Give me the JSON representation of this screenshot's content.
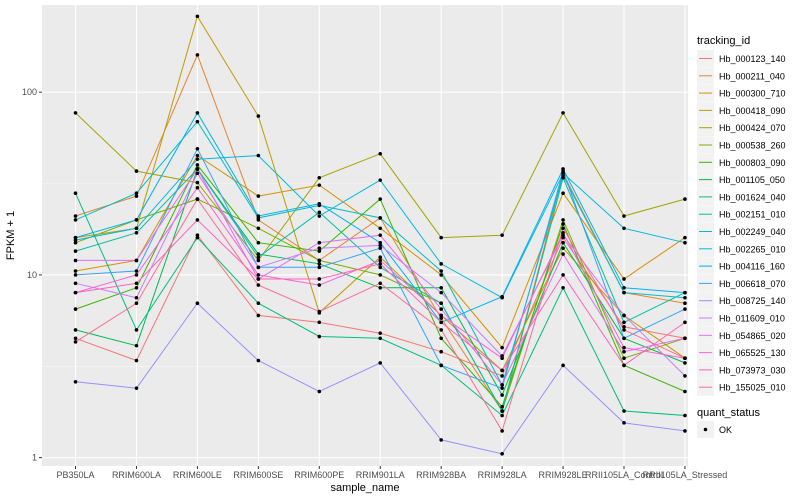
{
  "chart_data": {
    "type": "line",
    "xlabel": "sample_name",
    "ylabel": "FPKM + 1",
    "y_scale": "log10",
    "ylim": [
      0.9,
      300
    ],
    "yticks": [
      1,
      10,
      100
    ],
    "ytick_labels": [
      "1",
      "10",
      "100"
    ],
    "grid": true,
    "legend_position": "right",
    "legend_title": "tracking_id",
    "shape_legend_title": "quant_status",
    "shape_legend_items": [
      "OK"
    ],
    "categories": [
      "PB350LA",
      "RRIM600LA",
      "RRIM600LE",
      "RRIM600SE",
      "RRIM600PE",
      "RRIM901LA",
      "RRIM928BA",
      "RRIM928LA",
      "RRIM928LE",
      "RRII105LA_Control",
      "RRII105LA_Stressed"
    ],
    "series": [
      {
        "name": "Hb_000123_140",
        "color": "#F8766D",
        "values": [
          4.5,
          3.4,
          16.5,
          6.0,
          5.5,
          4.8,
          3.8,
          2.8,
          16.0,
          5.2,
          4.5
        ]
      },
      {
        "name": "Hb_000211_040",
        "color": "#EA8331",
        "values": [
          21.0,
          27.0,
          160.0,
          20.0,
          12.0,
          20.5,
          5.8,
          1.8,
          36.0,
          8.0,
          7.0
        ]
      },
      {
        "name": "Hb_000300_710",
        "color": "#D89000",
        "values": [
          10.5,
          12.0,
          45.0,
          27.0,
          31.0,
          18.0,
          10.0,
          4.0,
          28.0,
          9.5,
          16.0
        ]
      },
      {
        "name": "Hb_000418_090",
        "color": "#C09B00",
        "values": [
          16.0,
          18.0,
          260.0,
          74.0,
          6.2,
          12.5,
          6.0,
          3.0,
          14.0,
          6.0,
          3.5
        ]
      },
      {
        "name": "Hb_000424_070",
        "color": "#A3A500",
        "values": [
          77.0,
          37.0,
          32.0,
          12.0,
          34.0,
          46.0,
          16.0,
          16.5,
          77.0,
          21.0,
          26.0
        ]
      },
      {
        "name": "Hb_000538_260",
        "color": "#7CAE00",
        "values": [
          15.0,
          20.0,
          26.0,
          18.0,
          12.0,
          10.0,
          7.0,
          1.8,
          20.0,
          3.5,
          4.5
        ]
      },
      {
        "name": "Hb_000803_090",
        "color": "#39B600",
        "values": [
          6.5,
          8.5,
          40.0,
          15.0,
          13.5,
          26.0,
          4.5,
          1.9,
          19.0,
          3.2,
          2.3
        ]
      },
      {
        "name": "Hb_001105_050",
        "color": "#00BB4E",
        "values": [
          5.0,
          4.1,
          38.0,
          13.0,
          11.5,
          8.5,
          8.5,
          2.2,
          15.0,
          4.5,
          3.3
        ]
      },
      {
        "name": "Hb_001624_040",
        "color": "#00BF7D",
        "values": [
          28.0,
          5.0,
          16.0,
          7.0,
          4.6,
          4.5,
          3.2,
          1.7,
          8.5,
          1.8,
          1.7
        ]
      },
      {
        "name": "Hb_002151_010",
        "color": "#00C1A3",
        "values": [
          13.5,
          17.0,
          38.0,
          12.5,
          22.0,
          11.0,
          7.0,
          1.8,
          34.0,
          5.5,
          8.0
        ]
      },
      {
        "name": "Hb_002249_040",
        "color": "#00BFC4",
        "values": [
          20.0,
          28.0,
          69.0,
          20.5,
          24.0,
          20.5,
          10.5,
          2.5,
          35.0,
          8.0,
          7.5
        ]
      },
      {
        "name": "Hb_002265_010",
        "color": "#00BAE0",
        "values": [
          15.5,
          18.0,
          43.0,
          45.0,
          21.0,
          33.0,
          11.5,
          7.5,
          36.0,
          18.0,
          15.0
        ]
      },
      {
        "name": "Hb_004116_160",
        "color": "#00B0F6",
        "values": [
          16.0,
          20.0,
          77.0,
          21.0,
          24.5,
          15.0,
          5.5,
          7.6,
          38.0,
          8.5,
          8.0
        ]
      },
      {
        "name": "Hb_006618_070",
        "color": "#35A2FF",
        "values": [
          10.0,
          10.5,
          49.0,
          11.0,
          11.0,
          14.0,
          3.2,
          2.4,
          37.0,
          4.5,
          6.5
        ]
      },
      {
        "name": "Hb_008725_140",
        "color": "#9590FF",
        "values": [
          2.6,
          2.4,
          7.0,
          3.4,
          2.3,
          3.3,
          1.25,
          1.05,
          3.2,
          1.55,
          1.4
        ]
      },
      {
        "name": "Hb_011609_010",
        "color": "#C77CFF",
        "values": [
          9.0,
          7.5,
          36.0,
          11.0,
          14.0,
          14.5,
          8.0,
          3.6,
          16.5,
          6.0,
          2.8
        ]
      },
      {
        "name": "Hb_054865_020",
        "color": "#E76BF3",
        "values": [
          12.0,
          12.0,
          38.0,
          9.5,
          15.0,
          16.5,
          6.5,
          2.5,
          13.0,
          3.8,
          4.5
        ]
      },
      {
        "name": "Hb_065525_130",
        "color": "#FA62DB",
        "values": [
          8.0,
          10.0,
          30.0,
          10.0,
          8.8,
          12.0,
          6.0,
          3.5,
          17.0,
          4.0,
          3.5
        ]
      },
      {
        "name": "Hb_073973_030",
        "color": "#FF62BC",
        "values": [
          8.0,
          9.0,
          20.0,
          9.5,
          9.5,
          11.5,
          5.5,
          3.0,
          10.0,
          3.2,
          5.5
        ]
      },
      {
        "name": "Hb_155025_010",
        "color": "#FF6C91",
        "values": [
          4.3,
          7.0,
          26.0,
          8.8,
          6.3,
          9.0,
          5.0,
          1.4,
          18.0,
          5.0,
          3.5
        ]
      }
    ]
  }
}
